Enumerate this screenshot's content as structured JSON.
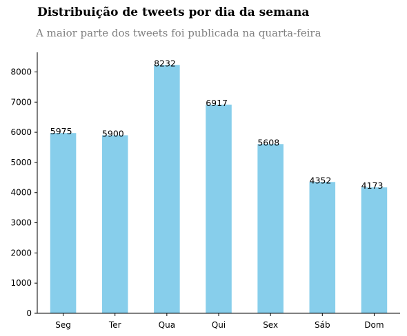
{
  "chart_data": {
    "type": "bar",
    "title": "Distribuição de tweets por dia da semana",
    "subtitle": "A maior parte dos tweets foi publicada na quarta-feira",
    "xlabel": "",
    "ylabel": "",
    "categories": [
      "Seg",
      "Ter",
      "Qua",
      "Qui",
      "Sex",
      "Sáb",
      "Dom"
    ],
    "values": [
      5975,
      5900,
      8232,
      6917,
      5608,
      4352,
      4173
    ],
    "ylim": [
      0,
      8650
    ],
    "yticks": [
      0,
      1000,
      2000,
      3000,
      4000,
      5000,
      6000,
      7000,
      8000
    ],
    "bar_color": "#87CEEB",
    "grid": false,
    "legend": "none",
    "spines": "left-bottom"
  }
}
